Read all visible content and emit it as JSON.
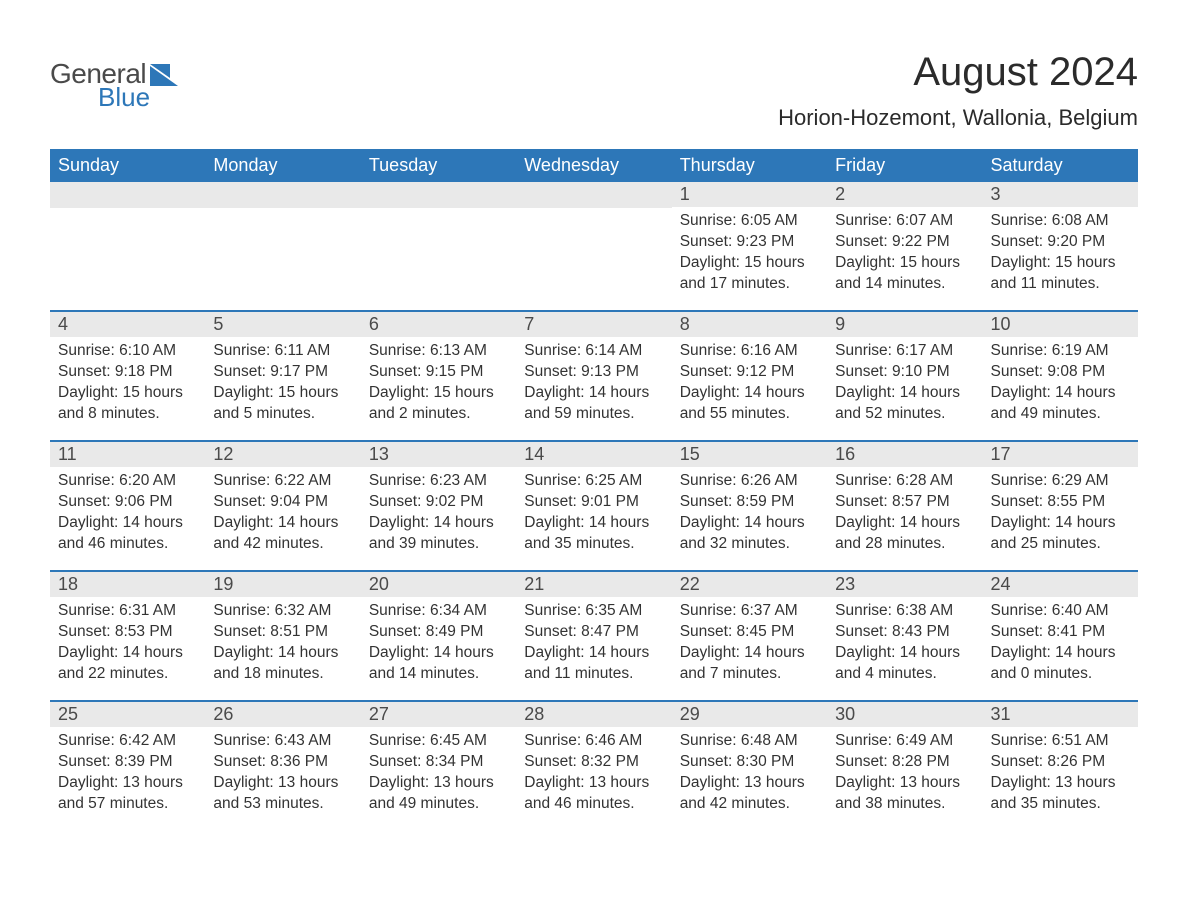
{
  "brand": {
    "word1": "General",
    "word2": "Blue",
    "shape_color": "#2d77b8"
  },
  "title": "August 2024",
  "location": "Horion-Hozemont, Wallonia, Belgium",
  "colors": {
    "header_bg": "#2d77b8",
    "header_text": "#ffffff",
    "daynum_bg": "#e9e9e9",
    "body_text": "#333333",
    "page_bg": "#ffffff",
    "week_divider": "#2d77b8"
  },
  "fonts": {
    "title_pt": 40,
    "location_pt": 22,
    "header_pt": 18,
    "daynum_pt": 18,
    "body_pt": 15.5
  },
  "daynames": [
    "Sunday",
    "Monday",
    "Tuesday",
    "Wednesday",
    "Thursday",
    "Friday",
    "Saturday"
  ],
  "weeks": [
    [
      {
        "n": "",
        "sunrise": "",
        "sunset": "",
        "daylight": ""
      },
      {
        "n": "",
        "sunrise": "",
        "sunset": "",
        "daylight": ""
      },
      {
        "n": "",
        "sunrise": "",
        "sunset": "",
        "daylight": ""
      },
      {
        "n": "",
        "sunrise": "",
        "sunset": "",
        "daylight": ""
      },
      {
        "n": "1",
        "sunrise": "Sunrise: 6:05 AM",
        "sunset": "Sunset: 9:23 PM",
        "daylight": "Daylight: 15 hours and 17 minutes."
      },
      {
        "n": "2",
        "sunrise": "Sunrise: 6:07 AM",
        "sunset": "Sunset: 9:22 PM",
        "daylight": "Daylight: 15 hours and 14 minutes."
      },
      {
        "n": "3",
        "sunrise": "Sunrise: 6:08 AM",
        "sunset": "Sunset: 9:20 PM",
        "daylight": "Daylight: 15 hours and 11 minutes."
      }
    ],
    [
      {
        "n": "4",
        "sunrise": "Sunrise: 6:10 AM",
        "sunset": "Sunset: 9:18 PM",
        "daylight": "Daylight: 15 hours and 8 minutes."
      },
      {
        "n": "5",
        "sunrise": "Sunrise: 6:11 AM",
        "sunset": "Sunset: 9:17 PM",
        "daylight": "Daylight: 15 hours and 5 minutes."
      },
      {
        "n": "6",
        "sunrise": "Sunrise: 6:13 AM",
        "sunset": "Sunset: 9:15 PM",
        "daylight": "Daylight: 15 hours and 2 minutes."
      },
      {
        "n": "7",
        "sunrise": "Sunrise: 6:14 AM",
        "sunset": "Sunset: 9:13 PM",
        "daylight": "Daylight: 14 hours and 59 minutes."
      },
      {
        "n": "8",
        "sunrise": "Sunrise: 6:16 AM",
        "sunset": "Sunset: 9:12 PM",
        "daylight": "Daylight: 14 hours and 55 minutes."
      },
      {
        "n": "9",
        "sunrise": "Sunrise: 6:17 AM",
        "sunset": "Sunset: 9:10 PM",
        "daylight": "Daylight: 14 hours and 52 minutes."
      },
      {
        "n": "10",
        "sunrise": "Sunrise: 6:19 AM",
        "sunset": "Sunset: 9:08 PM",
        "daylight": "Daylight: 14 hours and 49 minutes."
      }
    ],
    [
      {
        "n": "11",
        "sunrise": "Sunrise: 6:20 AM",
        "sunset": "Sunset: 9:06 PM",
        "daylight": "Daylight: 14 hours and 46 minutes."
      },
      {
        "n": "12",
        "sunrise": "Sunrise: 6:22 AM",
        "sunset": "Sunset: 9:04 PM",
        "daylight": "Daylight: 14 hours and 42 minutes."
      },
      {
        "n": "13",
        "sunrise": "Sunrise: 6:23 AM",
        "sunset": "Sunset: 9:02 PM",
        "daylight": "Daylight: 14 hours and 39 minutes."
      },
      {
        "n": "14",
        "sunrise": "Sunrise: 6:25 AM",
        "sunset": "Sunset: 9:01 PM",
        "daylight": "Daylight: 14 hours and 35 minutes."
      },
      {
        "n": "15",
        "sunrise": "Sunrise: 6:26 AM",
        "sunset": "Sunset: 8:59 PM",
        "daylight": "Daylight: 14 hours and 32 minutes."
      },
      {
        "n": "16",
        "sunrise": "Sunrise: 6:28 AM",
        "sunset": "Sunset: 8:57 PM",
        "daylight": "Daylight: 14 hours and 28 minutes."
      },
      {
        "n": "17",
        "sunrise": "Sunrise: 6:29 AM",
        "sunset": "Sunset: 8:55 PM",
        "daylight": "Daylight: 14 hours and 25 minutes."
      }
    ],
    [
      {
        "n": "18",
        "sunrise": "Sunrise: 6:31 AM",
        "sunset": "Sunset: 8:53 PM",
        "daylight": "Daylight: 14 hours and 22 minutes."
      },
      {
        "n": "19",
        "sunrise": "Sunrise: 6:32 AM",
        "sunset": "Sunset: 8:51 PM",
        "daylight": "Daylight: 14 hours and 18 minutes."
      },
      {
        "n": "20",
        "sunrise": "Sunrise: 6:34 AM",
        "sunset": "Sunset: 8:49 PM",
        "daylight": "Daylight: 14 hours and 14 minutes."
      },
      {
        "n": "21",
        "sunrise": "Sunrise: 6:35 AM",
        "sunset": "Sunset: 8:47 PM",
        "daylight": "Daylight: 14 hours and 11 minutes."
      },
      {
        "n": "22",
        "sunrise": "Sunrise: 6:37 AM",
        "sunset": "Sunset: 8:45 PM",
        "daylight": "Daylight: 14 hours and 7 minutes."
      },
      {
        "n": "23",
        "sunrise": "Sunrise: 6:38 AM",
        "sunset": "Sunset: 8:43 PM",
        "daylight": "Daylight: 14 hours and 4 minutes."
      },
      {
        "n": "24",
        "sunrise": "Sunrise: 6:40 AM",
        "sunset": "Sunset: 8:41 PM",
        "daylight": "Daylight: 14 hours and 0 minutes."
      }
    ],
    [
      {
        "n": "25",
        "sunrise": "Sunrise: 6:42 AM",
        "sunset": "Sunset: 8:39 PM",
        "daylight": "Daylight: 13 hours and 57 minutes."
      },
      {
        "n": "26",
        "sunrise": "Sunrise: 6:43 AM",
        "sunset": "Sunset: 8:36 PM",
        "daylight": "Daylight: 13 hours and 53 minutes."
      },
      {
        "n": "27",
        "sunrise": "Sunrise: 6:45 AM",
        "sunset": "Sunset: 8:34 PM",
        "daylight": "Daylight: 13 hours and 49 minutes."
      },
      {
        "n": "28",
        "sunrise": "Sunrise: 6:46 AM",
        "sunset": "Sunset: 8:32 PM",
        "daylight": "Daylight: 13 hours and 46 minutes."
      },
      {
        "n": "29",
        "sunrise": "Sunrise: 6:48 AM",
        "sunset": "Sunset: 8:30 PM",
        "daylight": "Daylight: 13 hours and 42 minutes."
      },
      {
        "n": "30",
        "sunrise": "Sunrise: 6:49 AM",
        "sunset": "Sunset: 8:28 PM",
        "daylight": "Daylight: 13 hours and 38 minutes."
      },
      {
        "n": "31",
        "sunrise": "Sunrise: 6:51 AM",
        "sunset": "Sunset: 8:26 PM",
        "daylight": "Daylight: 13 hours and 35 minutes."
      }
    ]
  ]
}
